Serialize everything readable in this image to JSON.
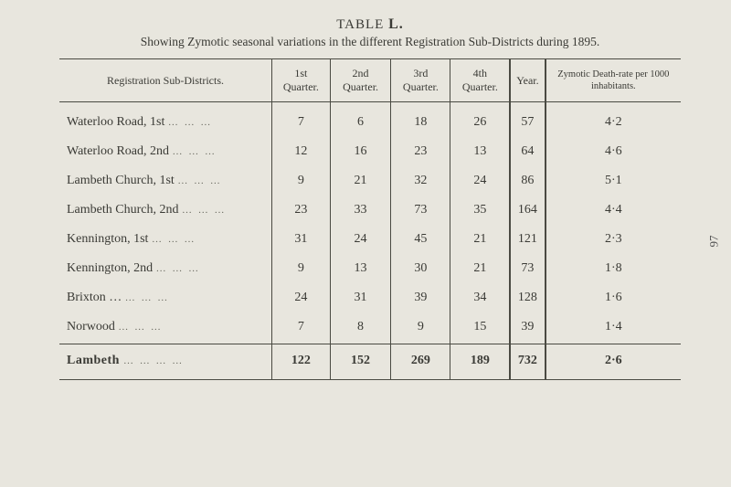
{
  "page_number_side": "97",
  "title_prefix": "TABLE",
  "title_letter": "L.",
  "subtitle": "Showing Zymotic seasonal variations in the different Registration Sub-Districts during 1895.",
  "headers": {
    "district": "Registration Sub-Districts.",
    "q1": "1st Quarter.",
    "q2": "2nd Quarter.",
    "q3": "3rd Quarter.",
    "q4": "4th Quarter.",
    "year": "Year.",
    "rate": "Zymotic Death-rate per 1000 inhabitants."
  },
  "rows": [
    {
      "label": "Waterloo Road, 1st",
      "dots": "…   …   …",
      "q1": "7",
      "q2": "6",
      "q3": "18",
      "q4": "26",
      "year": "57",
      "rate": "4·2"
    },
    {
      "label": "Waterloo Road, 2nd",
      "dots": "…   …   …",
      "q1": "12",
      "q2": "16",
      "q3": "23",
      "q4": "13",
      "year": "64",
      "rate": "4·6"
    },
    {
      "label": "Lambeth Church, 1st",
      "dots": "…   …   …",
      "q1": "9",
      "q2": "21",
      "q3": "32",
      "q4": "24",
      "year": "86",
      "rate": "5·1"
    },
    {
      "label": "Lambeth Church, 2nd",
      "dots": "…   …   …",
      "q1": "23",
      "q2": "33",
      "q3": "73",
      "q4": "35",
      "year": "164",
      "rate": "4·4"
    },
    {
      "label": "Kennington, 1st",
      "dots": "…   …   …",
      "q1": "31",
      "q2": "24",
      "q3": "45",
      "q4": "21",
      "year": "121",
      "rate": "2·3"
    },
    {
      "label": "Kennington, 2nd",
      "dots": "…   …   …",
      "q1": "9",
      "q2": "13",
      "q3": "30",
      "q4": "21",
      "year": "73",
      "rate": "1·8"
    },
    {
      "label": "Brixton …",
      "dots": "…   …   …",
      "q1": "24",
      "q2": "31",
      "q3": "39",
      "q4": "34",
      "year": "128",
      "rate": "1·6"
    },
    {
      "label": "Norwood",
      "dots": "…   …   …",
      "q1": "7",
      "q2": "8",
      "q3": "9",
      "q4": "15",
      "year": "39",
      "rate": "1·4"
    }
  ],
  "total": {
    "label": "Lambeth",
    "dots": "…   …   …   …",
    "q1": "122",
    "q2": "152",
    "q3": "269",
    "q4": "189",
    "year": "732",
    "rate": "2·6"
  },
  "colors": {
    "bg": "#e8e6de",
    "text": "#3a3a35",
    "rule": "#4a4a42"
  }
}
